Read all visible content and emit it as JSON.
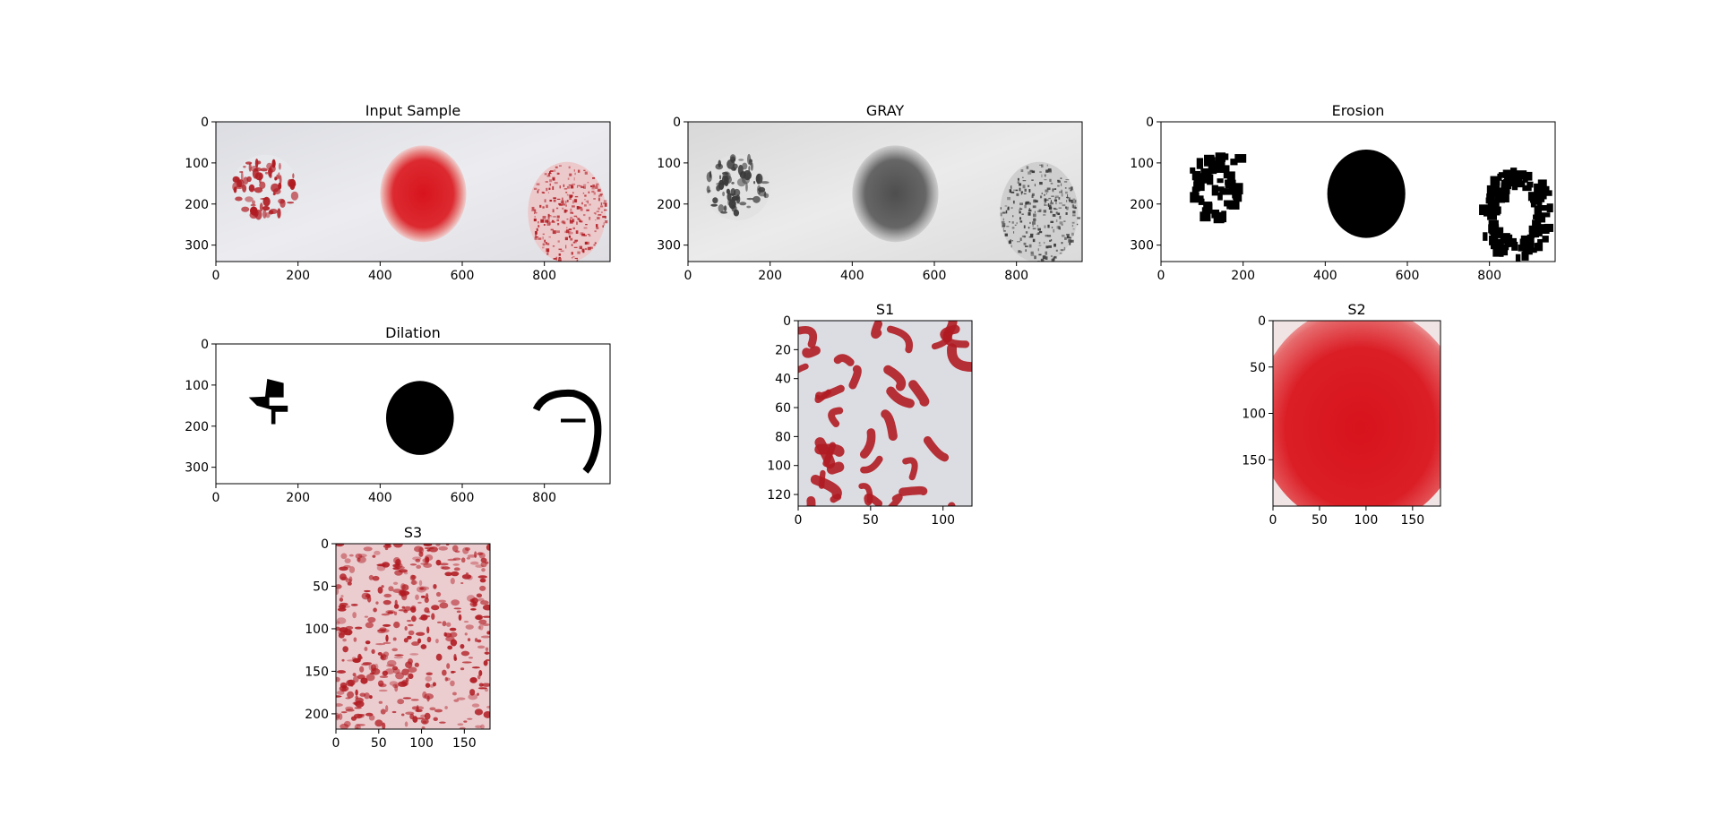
{
  "figure": {
    "background": "#ffffff",
    "panels": [
      {
        "id": "input",
        "title": "Input Sample",
        "xticks": [
          "0",
          "200",
          "400",
          "600",
          "800"
        ],
        "yticks": [
          "0",
          "100",
          "200",
          "300"
        ],
        "xlim": [
          0,
          960
        ],
        "ylim": [
          0,
          340
        ]
      },
      {
        "id": "gray",
        "title": "GRAY",
        "xticks": [
          "0",
          "200",
          "400",
          "600",
          "800"
        ],
        "yticks": [
          "0",
          "100",
          "200",
          "300"
        ],
        "xlim": [
          0,
          960
        ],
        "ylim": [
          0,
          340
        ]
      },
      {
        "id": "erosion",
        "title": "Erosion",
        "xticks": [
          "0",
          "200",
          "400",
          "600",
          "800"
        ],
        "yticks": [
          "0",
          "100",
          "200",
          "300"
        ],
        "xlim": [
          0,
          960
        ],
        "ylim": [
          0,
          340
        ]
      },
      {
        "id": "dilation",
        "title": "Dilation",
        "xticks": [
          "0",
          "200",
          "400",
          "600",
          "800"
        ],
        "yticks": [
          "0",
          "100",
          "200",
          "300"
        ],
        "xlim": [
          0,
          960
        ],
        "ylim": [
          0,
          340
        ]
      },
      {
        "id": "s1",
        "title": "S1",
        "xticks": [
          "0",
          "50",
          "100"
        ],
        "yticks": [
          "0",
          "20",
          "40",
          "60",
          "80",
          "100",
          "120"
        ],
        "xlim": [
          0,
          120
        ],
        "ylim": [
          0,
          128
        ]
      },
      {
        "id": "s2",
        "title": "S2",
        "xticks": [
          "0",
          "50",
          "100",
          "150"
        ],
        "yticks": [
          "0",
          "50",
          "100",
          "150"
        ],
        "xlim": [
          0,
          180
        ],
        "ylim": [
          0,
          200
        ]
      },
      {
        "id": "s3",
        "title": "S3",
        "xticks": [
          "0",
          "50",
          "100",
          "150"
        ],
        "yticks": [
          "0",
          "50",
          "100",
          "150",
          "200"
        ],
        "xlim": [
          0,
          180
        ],
        "ylim": [
          0,
          218
        ]
      }
    ]
  },
  "chart_data": [
    {
      "type": "image",
      "title": "Input Sample",
      "x_ticks": [
        0,
        200,
        400,
        600,
        800
      ],
      "y_ticks": [
        0,
        100,
        200,
        300
      ],
      "xlim": [
        0,
        960
      ],
      "ylim": [
        340,
        0
      ]
    },
    {
      "type": "image",
      "title": "GRAY",
      "x_ticks": [
        0,
        200,
        400,
        600,
        800
      ],
      "y_ticks": [
        0,
        100,
        200,
        300
      ],
      "xlim": [
        0,
        960
      ],
      "ylim": [
        340,
        0
      ]
    },
    {
      "type": "image",
      "title": "Erosion",
      "x_ticks": [
        0,
        200,
        400,
        600,
        800
      ],
      "y_ticks": [
        0,
        100,
        200,
        300
      ],
      "xlim": [
        0,
        960
      ],
      "ylim": [
        340,
        0
      ]
    },
    {
      "type": "image",
      "title": "Dilation",
      "x_ticks": [
        0,
        200,
        400,
        600,
        800
      ],
      "y_ticks": [
        0,
        100,
        200,
        300
      ],
      "xlim": [
        0,
        960
      ],
      "ylim": [
        340,
        0
      ]
    },
    {
      "type": "image",
      "title": "S1",
      "x_ticks": [
        0,
        50,
        100
      ],
      "y_ticks": [
        0,
        20,
        40,
        60,
        80,
        100,
        120
      ],
      "xlim": [
        0,
        120
      ],
      "ylim": [
        128,
        0
      ]
    },
    {
      "type": "image",
      "title": "S2",
      "x_ticks": [
        0,
        50,
        100,
        150
      ],
      "y_ticks": [
        0,
        50,
        100,
        150
      ],
      "xlim": [
        0,
        180
      ],
      "ylim": [
        200,
        0
      ]
    },
    {
      "type": "image",
      "title": "S3",
      "x_ticks": [
        0,
        50,
        100,
        150
      ],
      "y_ticks": [
        0,
        50,
        100,
        150,
        200
      ],
      "xlim": [
        0,
        180
      ],
      "ylim": [
        218,
        0
      ]
    }
  ],
  "colors": {
    "blood_red": "#d81a22",
    "dark_red": "#b01c22",
    "background_gray": "#e4e4e8",
    "mask": "#000000"
  }
}
